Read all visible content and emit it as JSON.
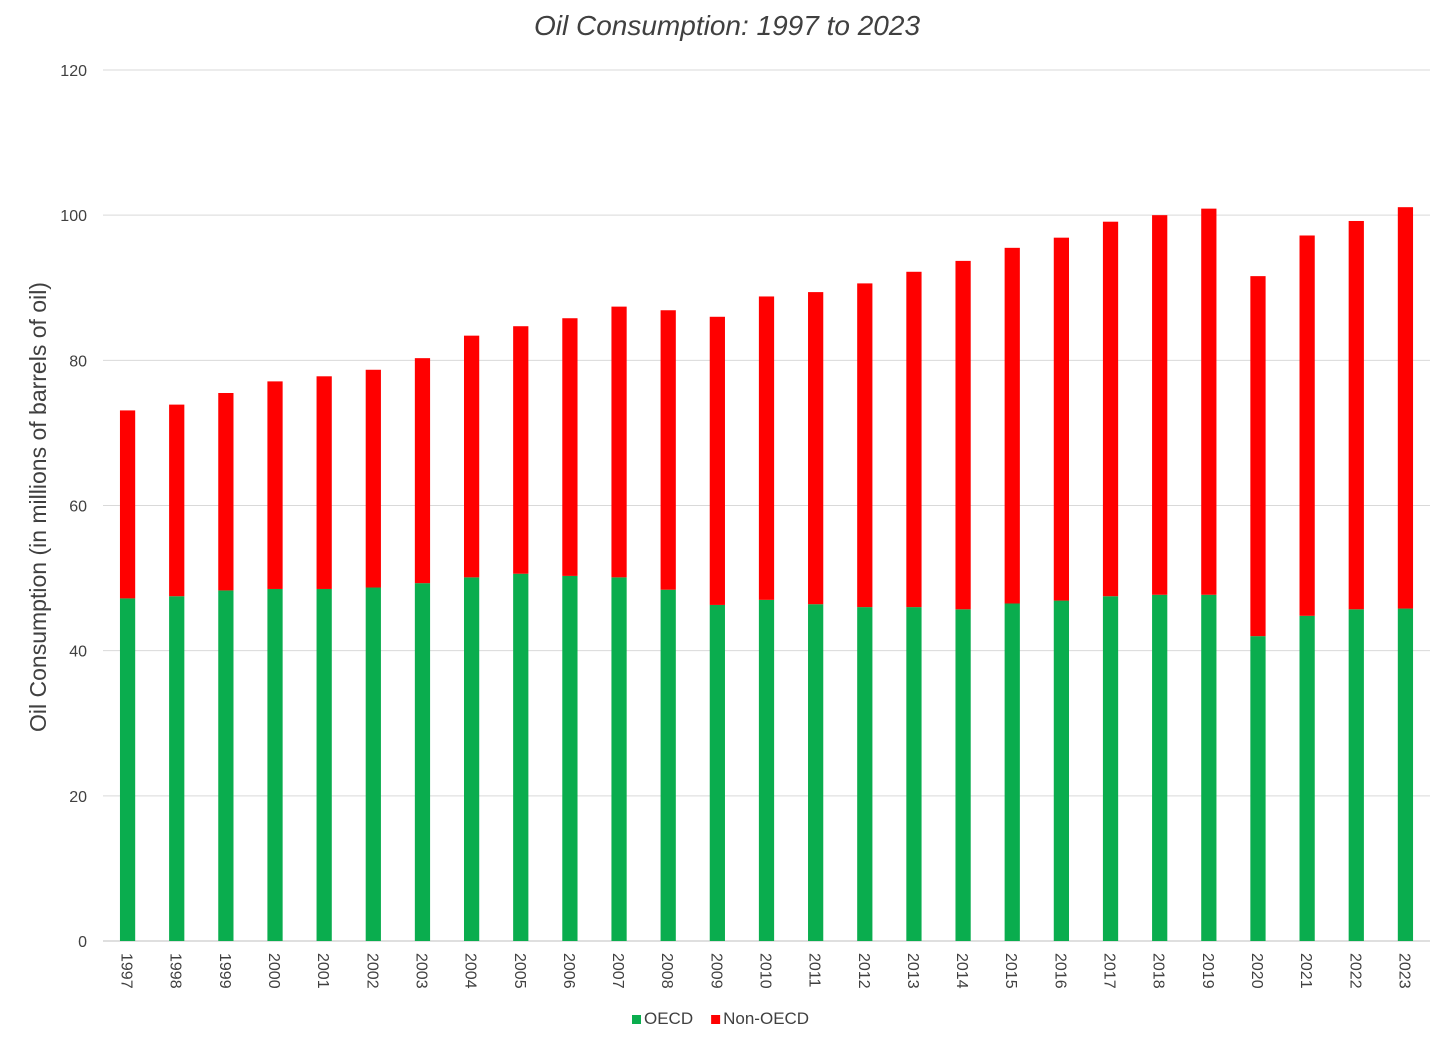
{
  "chart_data": {
    "type": "bar",
    "stacked": true,
    "title": "Oil Consumption: 1997 to 2023",
    "xlabel": "",
    "ylabel": "Oil Consumption (in millions of barrels of oil)",
    "ylim": [
      0,
      120
    ],
    "yticks": [
      0,
      20,
      40,
      60,
      80,
      100,
      120
    ],
    "grid": true,
    "legend_position": "bottom",
    "categories": [
      "1997",
      "1998",
      "1999",
      "2000",
      "2001",
      "2002",
      "2003",
      "2004",
      "2005",
      "2006",
      "2007",
      "2008",
      "2009",
      "2010",
      "2011",
      "2012",
      "2013",
      "2014",
      "2015",
      "2016",
      "2017",
      "2018",
      "2019",
      "2020",
      "2021",
      "2022",
      "2023"
    ],
    "series": [
      {
        "name": "OECD",
        "color": "#0aad4e",
        "values": [
          47.2,
          47.5,
          48.3,
          48.5,
          48.5,
          48.7,
          49.3,
          50.1,
          50.6,
          50.3,
          50.1,
          48.4,
          46.3,
          47.0,
          46.4,
          46.0,
          46.0,
          45.7,
          46.5,
          46.9,
          47.5,
          47.7,
          47.7,
          42.0,
          44.8,
          45.7,
          45.8
        ]
      },
      {
        "name": "Non-OECD",
        "color": "#ff0000",
        "values": [
          25.9,
          26.4,
          27.2,
          28.6,
          29.3,
          30.0,
          31.0,
          33.3,
          34.1,
          35.5,
          37.3,
          38.5,
          39.7,
          41.8,
          43.0,
          44.6,
          46.2,
          48.0,
          49.0,
          50.0,
          51.6,
          52.3,
          53.2,
          49.6,
          52.4,
          53.5,
          55.3
        ]
      }
    ]
  }
}
